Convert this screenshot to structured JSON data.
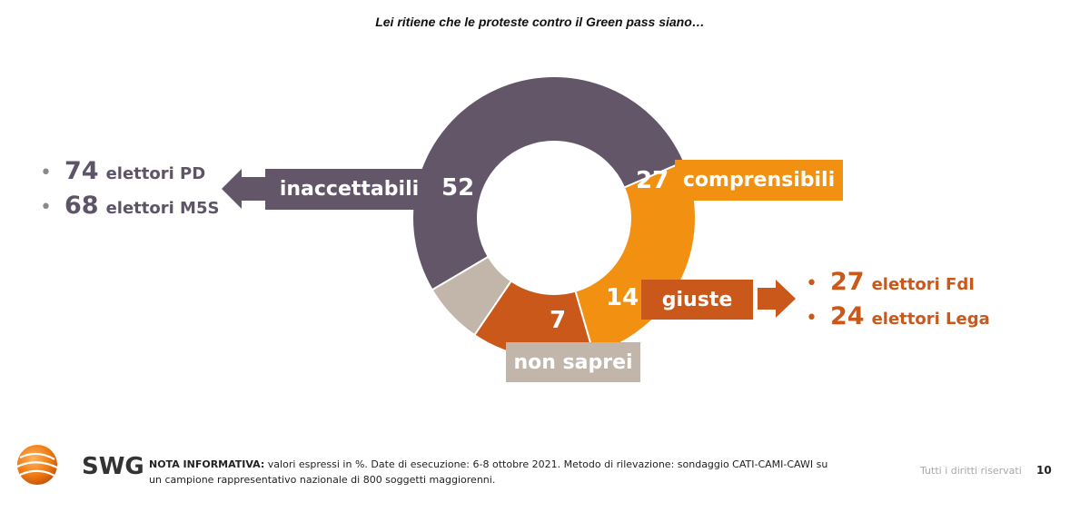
{
  "title": "Lei ritiene che le proteste contro il Green pass siano…",
  "chart_data": {
    "type": "pie",
    "variant": "donut",
    "title": "Lei ritiene che le proteste contro il Green pass siano…",
    "unit": "%",
    "slices": [
      {
        "label": "inaccettabili",
        "value": 52,
        "color": "#625668"
      },
      {
        "label": "comprensibili",
        "value": 27,
        "color": "#f29111"
      },
      {
        "label": "giuste",
        "value": 14,
        "color": "#c9581a"
      },
      {
        "label": "non saprei",
        "value": 7,
        "color": "#c2b5aa"
      }
    ]
  },
  "left_stats": [
    {
      "value": "74",
      "label": "elettori PD"
    },
    {
      "value": "68",
      "label": "elettori M5S"
    }
  ],
  "right_stats": [
    {
      "value": "27",
      "label": "elettori FdI"
    },
    {
      "value": "24",
      "label": "elettori Lega"
    }
  ],
  "footer": {
    "note_label": "NOTA INFORMATIVA:",
    "note_text": " valori espressi in %. Date di esecuzione: 6-8 ottobre 2021. Metodo di rilevazione: sondaggio CATI-CAMI-CAWI su un campione rappresentativo nazionale di 800 soggetti maggiorenni.",
    "rights": "Tutti i diritti riservati",
    "page": "10",
    "logo_text": "SWG"
  },
  "colors": {
    "inaccettabili": "#625668",
    "comprensibili": "#f29111",
    "giuste": "#c9581a",
    "non_saprei": "#c2b5aa",
    "left_text": "#5e5468",
    "right_text": "#c9581a"
  }
}
